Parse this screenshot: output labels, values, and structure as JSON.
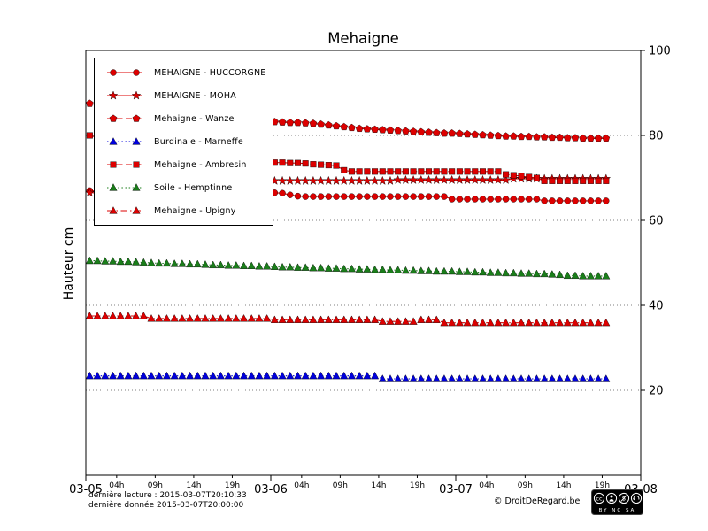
{
  "header": {
    "title": "Mehaigne"
  },
  "footer": {
    "last_reading_label": "dernière lecture : 2015-03-07T20:10:33",
    "last_data_label": "dernière donnée  2015-03-07T20:00:00",
    "credit": "© DroitDeRegard.be",
    "cc_symbol": "cc",
    "cc_text": "BY NC SA"
  },
  "chart_data": {
    "type": "line",
    "title": "Mehaigne",
    "xlabel": "",
    "ylabel": "Hauteur cm",
    "ylim": [
      0,
      100
    ],
    "yticks": [
      20,
      40,
      60,
      80,
      100
    ],
    "grid": {
      "horizontal": true,
      "style": "dotted"
    },
    "legend_position": "upper-left",
    "x_hours_range": [
      0,
      72
    ],
    "x_major_ticks_hours": [
      0,
      24,
      48,
      72
    ],
    "x_major_labels": [
      "03-05",
      "03-06",
      "03-07",
      "03-08"
    ],
    "x_minor_hour_offsets": [
      4,
      9,
      14,
      19
    ],
    "x_minor_labels": [
      "04h",
      "09h",
      "14h",
      "19h"
    ],
    "series": [
      {
        "name": "MEHAIGNE - HUCCORGNE",
        "color": "#dd0000",
        "marker": "circle",
        "line": "solid",
        "t0": 0.5,
        "dt": 1,
        "values": [
          67.0,
          66.9,
          66.8,
          66.8,
          66.7,
          66.7,
          66.6,
          66.6,
          66.5,
          66.5,
          66.4,
          66.4,
          66.3,
          66.3,
          66.2,
          66.2,
          66.1,
          66.1,
          66.0,
          66.0,
          66.0,
          66.1,
          66.3,
          66.5,
          66.5,
          66.4,
          66.0,
          65.7,
          65.6,
          65.6,
          65.6,
          65.6,
          65.6,
          65.6,
          65.6,
          65.6,
          65.6,
          65.6,
          65.6,
          65.6,
          65.6,
          65.6,
          65.6,
          65.6,
          65.6,
          65.6,
          65.6,
          65.0,
          65.0,
          65.0,
          65.0,
          65.0,
          65.0,
          65.0,
          65.0,
          65.0,
          65.0,
          65.0,
          65.0,
          64.6,
          64.6,
          64.6,
          64.6,
          64.6,
          64.6,
          64.6,
          64.6,
          64.6
        ]
      },
      {
        "name": "MEHAIGNE - MOHA",
        "color": "#dd0000",
        "marker": "star",
        "line": "solid",
        "t0": 0.5,
        "dt": 1,
        "values": [
          66.5,
          66.5,
          66.6,
          66.6,
          66.7,
          66.7,
          66.8,
          66.8,
          66.9,
          67.0,
          67.0,
          67.1,
          67.2,
          67.3,
          67.5,
          67.6,
          67.8,
          68.0,
          68.2,
          68.4,
          68.6,
          68.8,
          69.0,
          69.2,
          69.3,
          69.3,
          69.3,
          69.3,
          69.3,
          69.3,
          69.3,
          69.3,
          69.3,
          69.3,
          69.3,
          69.3,
          69.3,
          69.3,
          69.3,
          69.3,
          69.5,
          69.5,
          69.5,
          69.5,
          69.5,
          69.5,
          69.5,
          69.5,
          69.5,
          69.5,
          69.5,
          69.5,
          69.5,
          69.5,
          69.5,
          69.8,
          69.8,
          69.8,
          69.8,
          69.8,
          69.8,
          69.8,
          69.8,
          69.8,
          69.8,
          69.8,
          69.8,
          69.8
        ]
      },
      {
        "name": "Mehaigne - Wanze",
        "color": "#dd0000",
        "marker": "pentagon",
        "line": "dashed",
        "t0": 0.5,
        "dt": 1,
        "values": [
          87.5,
          87.2,
          87.0,
          86.8,
          86.6,
          86.4,
          86.2,
          86.0,
          85.8,
          85.6,
          85.4,
          85.2,
          85.0,
          84.8,
          84.6,
          84.4,
          84.2,
          84.0,
          83.8,
          83.6,
          83.5,
          83.4,
          83.3,
          83.2,
          83.2,
          83.1,
          83.0,
          83.0,
          82.9,
          82.8,
          82.6,
          82.4,
          82.2,
          82.0,
          81.8,
          81.6,
          81.5,
          81.4,
          81.3,
          81.2,
          81.1,
          81.0,
          80.9,
          80.8,
          80.7,
          80.6,
          80.5,
          80.5,
          80.4,
          80.3,
          80.2,
          80.1,
          80.0,
          79.9,
          79.8,
          79.8,
          79.7,
          79.7,
          79.6,
          79.6,
          79.5,
          79.5,
          79.4,
          79.4,
          79.3,
          79.3,
          79.3,
          79.3
        ]
      },
      {
        "name": "Burdinale - Marneffe",
        "color": "#0000dd",
        "marker": "triangle-up",
        "line": "dotted",
        "t0": 0.5,
        "dt": 1,
        "values": [
          23.4,
          23.4,
          23.4,
          23.4,
          23.4,
          23.4,
          23.4,
          23.4,
          23.4,
          23.4,
          23.4,
          23.4,
          23.4,
          23.4,
          23.4,
          23.4,
          23.4,
          23.4,
          23.4,
          23.4,
          23.4,
          23.4,
          23.4,
          23.4,
          23.4,
          23.4,
          23.4,
          23.4,
          23.4,
          23.4,
          23.4,
          23.4,
          23.4,
          23.4,
          23.4,
          23.4,
          23.4,
          23.4,
          22.7,
          22.7,
          22.7,
          22.7,
          22.7,
          22.7,
          22.7,
          22.7,
          22.7,
          22.7,
          22.7,
          22.7,
          22.7,
          22.7,
          22.7,
          22.7,
          22.7,
          22.7,
          22.7,
          22.7,
          22.7,
          22.7,
          22.7,
          22.7,
          22.7,
          22.7,
          22.7,
          22.7,
          22.7,
          22.7
        ]
      },
      {
        "name": "Mehaigne - Ambresin",
        "color": "#dd0000",
        "marker": "square",
        "line": "dashed",
        "t0": 0.5,
        "dt": 1,
        "values": [
          80.0,
          79.5,
          79.0,
          78.5,
          78.0,
          77.6,
          77.2,
          76.8,
          76.4,
          76.0,
          75.7,
          75.4,
          75.1,
          74.9,
          74.7,
          74.5,
          74.4,
          74.3,
          74.2,
          74.1,
          74.0,
          73.9,
          73.8,
          73.7,
          73.6,
          73.6,
          73.5,
          73.5,
          73.4,
          73.2,
          73.1,
          73.0,
          72.9,
          71.8,
          71.5,
          71.5,
          71.5,
          71.5,
          71.5,
          71.5,
          71.5,
          71.5,
          71.5,
          71.5,
          71.5,
          71.5,
          71.5,
          71.5,
          71.5,
          71.5,
          71.5,
          71.5,
          71.5,
          71.5,
          70.8,
          70.6,
          70.4,
          70.2,
          70.0,
          69.3,
          69.3,
          69.3,
          69.3,
          69.3,
          69.3,
          69.3,
          69.3,
          69.3
        ]
      },
      {
        "name": "Soile - Hemptinne",
        "color": "#1a7e1a",
        "marker": "triangle-up",
        "line": "dotted",
        "t0": 0.5,
        "dt": 1,
        "values": [
          50.5,
          50.5,
          50.4,
          50.4,
          50.3,
          50.3,
          50.2,
          50.1,
          50.0,
          49.9,
          49.9,
          49.8,
          49.8,
          49.7,
          49.7,
          49.6,
          49.5,
          49.5,
          49.4,
          49.4,
          49.3,
          49.3,
          49.2,
          49.2,
          49.1,
          49.0,
          49.0,
          48.9,
          48.9,
          48.8,
          48.8,
          48.7,
          48.7,
          48.6,
          48.6,
          48.5,
          48.5,
          48.4,
          48.4,
          48.3,
          48.3,
          48.2,
          48.2,
          48.1,
          48.1,
          48.0,
          48.0,
          48.0,
          47.9,
          47.9,
          47.8,
          47.8,
          47.7,
          47.7,
          47.6,
          47.6,
          47.5,
          47.5,
          47.4,
          47.4,
          47.3,
          47.2,
          47.0,
          47.0,
          46.9,
          46.9,
          46.9,
          46.9
        ]
      },
      {
        "name": "Mehaigne - Upigny",
        "color": "#dd0000",
        "marker": "triangle-up",
        "line": "dashdot",
        "t0": 0.5,
        "dt": 1,
        "values": [
          37.5,
          37.5,
          37.5,
          37.5,
          37.5,
          37.5,
          37.5,
          37.5,
          36.9,
          36.9,
          36.9,
          36.9,
          36.9,
          36.9,
          36.9,
          36.9,
          36.9,
          36.9,
          36.9,
          36.9,
          36.9,
          36.9,
          36.9,
          36.9,
          36.6,
          36.6,
          36.6,
          36.6,
          36.6,
          36.6,
          36.6,
          36.6,
          36.6,
          36.6,
          36.6,
          36.6,
          36.6,
          36.6,
          36.2,
          36.2,
          36.2,
          36.2,
          36.2,
          36.6,
          36.6,
          36.6,
          35.9,
          35.9,
          35.9,
          35.9,
          35.9,
          35.9,
          35.9,
          35.9,
          35.9,
          35.9,
          35.9,
          35.9,
          35.9,
          35.9,
          35.9,
          35.9,
          35.9,
          35.9,
          35.9,
          35.9,
          35.9,
          35.9
        ]
      }
    ]
  }
}
